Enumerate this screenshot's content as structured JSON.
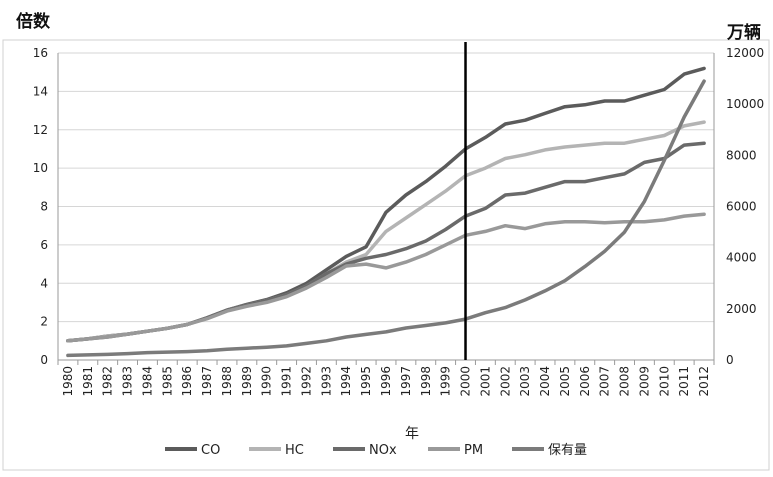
{
  "chart_data": {
    "type": "line",
    "left_unit": "倍数",
    "right_unit": "万辆",
    "xlabel": "年",
    "categories": [
      "1980",
      "1981",
      "1982",
      "1983",
      "1984",
      "1985",
      "1986",
      "1987",
      "1988",
      "1989",
      "1990",
      "1991",
      "1992",
      "1993",
      "1994",
      "1995",
      "1996",
      "1997",
      "1998",
      "1999",
      "2000",
      "2001",
      "2002",
      "2003",
      "2004",
      "2005",
      "2006",
      "2007",
      "2008",
      "2009",
      "2010",
      "2011",
      "2012"
    ],
    "y_left": {
      "min": 0,
      "max": 16,
      "ticks": [
        0,
        2,
        4,
        6,
        8,
        10,
        12,
        14,
        16
      ]
    },
    "y_right": {
      "min": 0,
      "max": 12000,
      "ticks": [
        0,
        2000,
        4000,
        6000,
        8000,
        10000,
        12000
      ]
    },
    "reference_line_x": "2000",
    "grid": "horizontal",
    "legend_position": "bottom",
    "series": [
      {
        "name": "CO",
        "axis": "left",
        "color": "#5b5b5b",
        "values": [
          1.0,
          1.1,
          1.25,
          1.35,
          1.5,
          1.65,
          1.85,
          2.2,
          2.6,
          2.9,
          3.15,
          3.5,
          4.0,
          4.7,
          5.4,
          5.9,
          7.7,
          8.6,
          9.3,
          10.1,
          11.0,
          11.6,
          12.3,
          12.5,
          12.85,
          13.2,
          13.3,
          13.5,
          13.5,
          13.8,
          14.1,
          14.9,
          15.2
        ]
      },
      {
        "name": "HC",
        "axis": "left",
        "color": "#b4b4b4",
        "values": [
          1.0,
          1.1,
          1.25,
          1.35,
          1.5,
          1.65,
          1.85,
          2.2,
          2.6,
          2.85,
          3.1,
          3.4,
          3.85,
          4.5,
          5.1,
          5.5,
          6.7,
          7.4,
          8.1,
          8.8,
          9.6,
          10.0,
          10.5,
          10.7,
          10.95,
          11.1,
          11.2,
          11.3,
          11.3,
          11.5,
          11.7,
          12.2,
          12.4
        ]
      },
      {
        "name": "NOx",
        "axis": "left",
        "color": "#6a6a6a",
        "values": [
          1.0,
          1.1,
          1.2,
          1.35,
          1.5,
          1.65,
          1.85,
          2.2,
          2.6,
          2.85,
          3.1,
          3.4,
          3.85,
          4.5,
          5.0,
          5.3,
          5.5,
          5.8,
          6.2,
          6.8,
          7.5,
          7.9,
          8.6,
          8.7,
          9.0,
          9.3,
          9.3,
          9.5,
          9.7,
          10.3,
          10.5,
          11.2,
          11.3
        ]
      },
      {
        "name": "PM",
        "axis": "left",
        "color": "#999999",
        "values": [
          1.0,
          1.1,
          1.2,
          1.35,
          1.5,
          1.65,
          1.85,
          2.15,
          2.55,
          2.8,
          3.0,
          3.3,
          3.75,
          4.3,
          4.9,
          5.0,
          4.8,
          5.1,
          5.5,
          6.0,
          6.5,
          6.7,
          7.0,
          6.85,
          7.1,
          7.2,
          7.2,
          7.15,
          7.2,
          7.2,
          7.3,
          7.5,
          7.6
        ]
      },
      {
        "name": "保有量",
        "axis": "right",
        "color": "#7b7b7b",
        "values": [
          180,
          200,
          220,
          250,
          290,
          310,
          330,
          360,
          420,
          460,
          500,
          550,
          650,
          750,
          900,
          1000,
          1100,
          1250,
          1350,
          1450,
          1600,
          1850,
          2050,
          2350,
          2700,
          3100,
          3650,
          4250,
          5000,
          6200,
          7800,
          9500,
          10900
        ]
      }
    ]
  }
}
